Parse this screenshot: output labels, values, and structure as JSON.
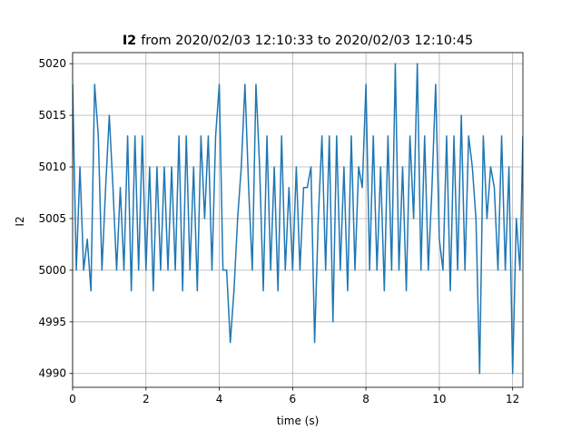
{
  "chart_data": {
    "type": "line",
    "title": {
      "name": "I2",
      "text": "from 2020/02/03 12:10:33 to 2020/02/03 12:10:45"
    },
    "x_label": "time (s)",
    "y_label": "I2",
    "x": [
      0.0,
      0.1,
      0.2,
      0.3,
      0.4,
      0.5,
      0.6,
      0.7,
      0.8,
      0.9,
      1.0,
      1.1,
      1.2,
      1.3,
      1.4,
      1.5,
      1.6,
      1.7,
      1.8,
      1.9,
      2.0,
      2.1,
      2.2,
      2.3,
      2.4,
      2.5,
      2.6,
      2.7,
      2.8,
      2.9,
      3.0,
      3.1,
      3.2,
      3.3,
      3.4,
      3.5,
      3.6,
      3.7,
      3.8,
      3.9,
      4.0,
      4.1,
      4.2,
      4.3,
      4.4,
      4.5,
      4.6,
      4.7,
      4.8,
      4.9,
      5.0,
      5.1,
      5.2,
      5.3,
      5.4,
      5.5,
      5.6,
      5.7,
      5.8,
      5.9,
      6.0,
      6.1,
      6.2,
      6.3,
      6.4,
      6.5,
      6.6,
      6.7,
      6.8,
      6.9,
      7.0,
      7.1,
      7.2,
      7.3,
      7.4,
      7.5,
      7.6,
      7.7,
      7.8,
      7.9,
      8.0,
      8.1,
      8.2,
      8.3,
      8.4,
      8.5,
      8.6,
      8.7,
      8.8,
      8.9,
      9.0,
      9.1,
      9.2,
      9.3,
      9.4,
      9.5,
      9.6,
      9.7,
      9.8,
      9.9,
      10.0,
      10.1,
      10.2,
      10.3,
      10.4,
      10.5,
      10.6,
      10.7,
      10.8,
      10.9,
      11.0,
      11.1,
      11.2,
      11.3,
      11.4,
      11.5,
      11.6,
      11.7,
      11.8,
      11.9,
      12.0,
      12.1,
      12.2,
      12.28
    ],
    "series": [
      {
        "name": "I2",
        "color": "#1f77b4",
        "values": [
          5018,
          5000,
          5010,
          5000,
          5003,
          4998,
          5018,
          5013,
          5000,
          5008,
          5015,
          5008,
          5000,
          5008,
          5000,
          5013,
          4998,
          5013,
          5000,
          5013,
          5000,
          5010,
          4998,
          5010,
          5000,
          5010,
          5000,
          5010,
          5000,
          5013,
          4998,
          5013,
          5000,
          5010,
          4998,
          5013,
          5005,
          5013,
          5000,
          5013,
          5018,
          5000,
          5000,
          4993,
          4998,
          5005,
          5010,
          5018,
          5008,
          5000,
          5018,
          5010,
          4998,
          5013,
          5000,
          5010,
          4998,
          5013,
          5000,
          5008,
          5000,
          5010,
          5000,
          5008,
          5008,
          5010,
          4993,
          5005,
          5013,
          5000,
          5013,
          4995,
          5013,
          5000,
          5010,
          4998,
          5013,
          5000,
          5010,
          5008,
          5018,
          5000,
          5013,
          5000,
          5010,
          4998,
          5013,
          5000,
          5020,
          5000,
          5010,
          4998,
          5013,
          5005,
          5020,
          5000,
          5013,
          5000,
          5008,
          5018,
          5003,
          5000,
          5013,
          4998,
          5013,
          5000,
          5015,
          5000,
          5013,
          5010,
          5005,
          4990,
          5013,
          5005,
          5010,
          5008,
          5000,
          5013,
          5000,
          5010,
          4990,
          5005,
          5000,
          5013
        ]
      }
    ],
    "xlim": [
      0,
      12.28
    ],
    "ylim": [
      4988.66,
      5021.07
    ],
    "xticks": [
      0,
      2,
      4,
      6,
      8,
      10,
      12
    ],
    "yticks": [
      4990,
      4995,
      5000,
      5005,
      5010,
      5015,
      5020
    ],
    "grid": true
  }
}
